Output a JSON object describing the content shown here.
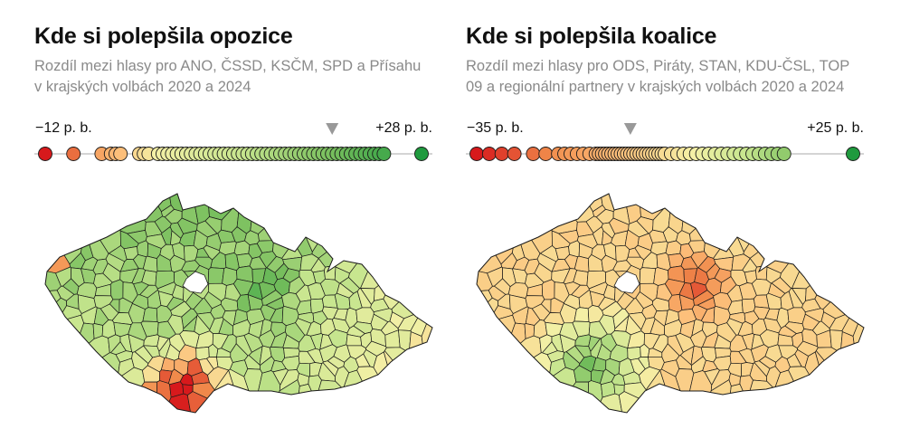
{
  "panels": [
    {
      "title": "Kde si polepšila opozice",
      "subtitle": "Rozdíl mezi hlasy pro ANO, ČSSD, KSČM, SPD a Přísahu v krajských volbách 2020 a 2024",
      "scale_min_label": "−12 p. b.",
      "scale_max_label": "+28 p. b.",
      "scale_min": -12,
      "scale_max": 28,
      "marker_value": 18.5
    },
    {
      "title": "Kde si polepšila koalice",
      "subtitle": "Rozdíl mezi hlasy pro ODS, Piráty, STAN, KDU-ČSL, TOP 09 a regionální partnery v krajských volbách 2020 a 2024",
      "scale_min_label": "−35 p. b.",
      "scale_max_label": "+25 p. b.",
      "scale_min": -35,
      "scale_max": 25,
      "marker_value": -10.5
    }
  ],
  "colors": {
    "neg_strong": "#d7191c",
    "neg_mid": "#f08a4b",
    "neg_light": "#fdbf7a",
    "neutral": "#f4f0a6",
    "pos_light": "#c6e58e",
    "pos_mid": "#79bf5e",
    "pos_strong": "#1f9a3e",
    "border": "#1a1a1a",
    "axis": "#bbbbbb",
    "marker": "#999999"
  },
  "chart_data": [
    {
      "type": "choropleth",
      "title": "Kde si polepšila opozice",
      "unit": "p. b.",
      "range": [
        -12,
        28
      ],
      "district_values": [
        -12,
        -9,
        -6,
        -5,
        -4.5,
        -4,
        -2,
        -1.5,
        -1,
        0,
        0.5,
        1,
        1.5,
        2,
        2.5,
        3,
        3.5,
        4,
        4.5,
        5,
        5.5,
        6,
        6.5,
        7,
        7.5,
        8,
        8.5,
        9,
        9.5,
        10,
        10.5,
        11,
        11.5,
        12,
        12.5,
        13,
        13.5,
        14,
        14.5,
        15,
        15.5,
        16,
        16.5,
        17,
        17.5,
        18,
        18.5,
        19,
        19.5,
        20,
        20.5,
        21,
        21.5,
        22,
        22.5,
        23,
        23.5,
        24,
        28
      ]
    },
    {
      "type": "choropleth",
      "title": "Kde si polepšila koalice",
      "unit": "p. b.",
      "range": [
        -35,
        25
      ],
      "district_values": [
        -35,
        -33,
        -31,
        -29,
        -26,
        -24,
        -22,
        -21,
        -20,
        -19,
        -18,
        -17,
        -16,
        -15.5,
        -15,
        -14.5,
        -14,
        -13.5,
        -13,
        -12.5,
        -12,
        -11.5,
        -11,
        -10.5,
        -10,
        -9.5,
        -9,
        -8.5,
        -8,
        -7.5,
        -7,
        -6.5,
        -6,
        -5.5,
        -5,
        -4,
        -3,
        -2,
        -1,
        0,
        1,
        2,
        3,
        4,
        5,
        6,
        7,
        8,
        9,
        10,
        11,
        12,
        13,
        14,
        25
      ]
    }
  ]
}
